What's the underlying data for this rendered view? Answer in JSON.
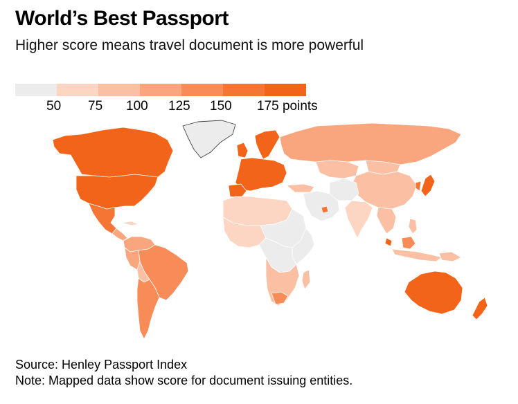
{
  "title": "World’s Best Passport",
  "subtitle": "Higher score means travel document is more powerful",
  "legend": {
    "colors": [
      "#ececec",
      "#fcd5c3",
      "#fbbfa3",
      "#f9a67e",
      "#f78c58",
      "#f57535",
      "#f26419"
    ],
    "labels": [
      "50",
      "75",
      "100",
      "125",
      "150",
      "175 points"
    ]
  },
  "map_palette": {
    "ocean": "#ffffff",
    "border": "#ffffff",
    "outline": "#444444"
  },
  "footer": {
    "source": "Source: Henley Passport Index",
    "note": "Note: Mapped data show score for document issuing entities."
  }
}
